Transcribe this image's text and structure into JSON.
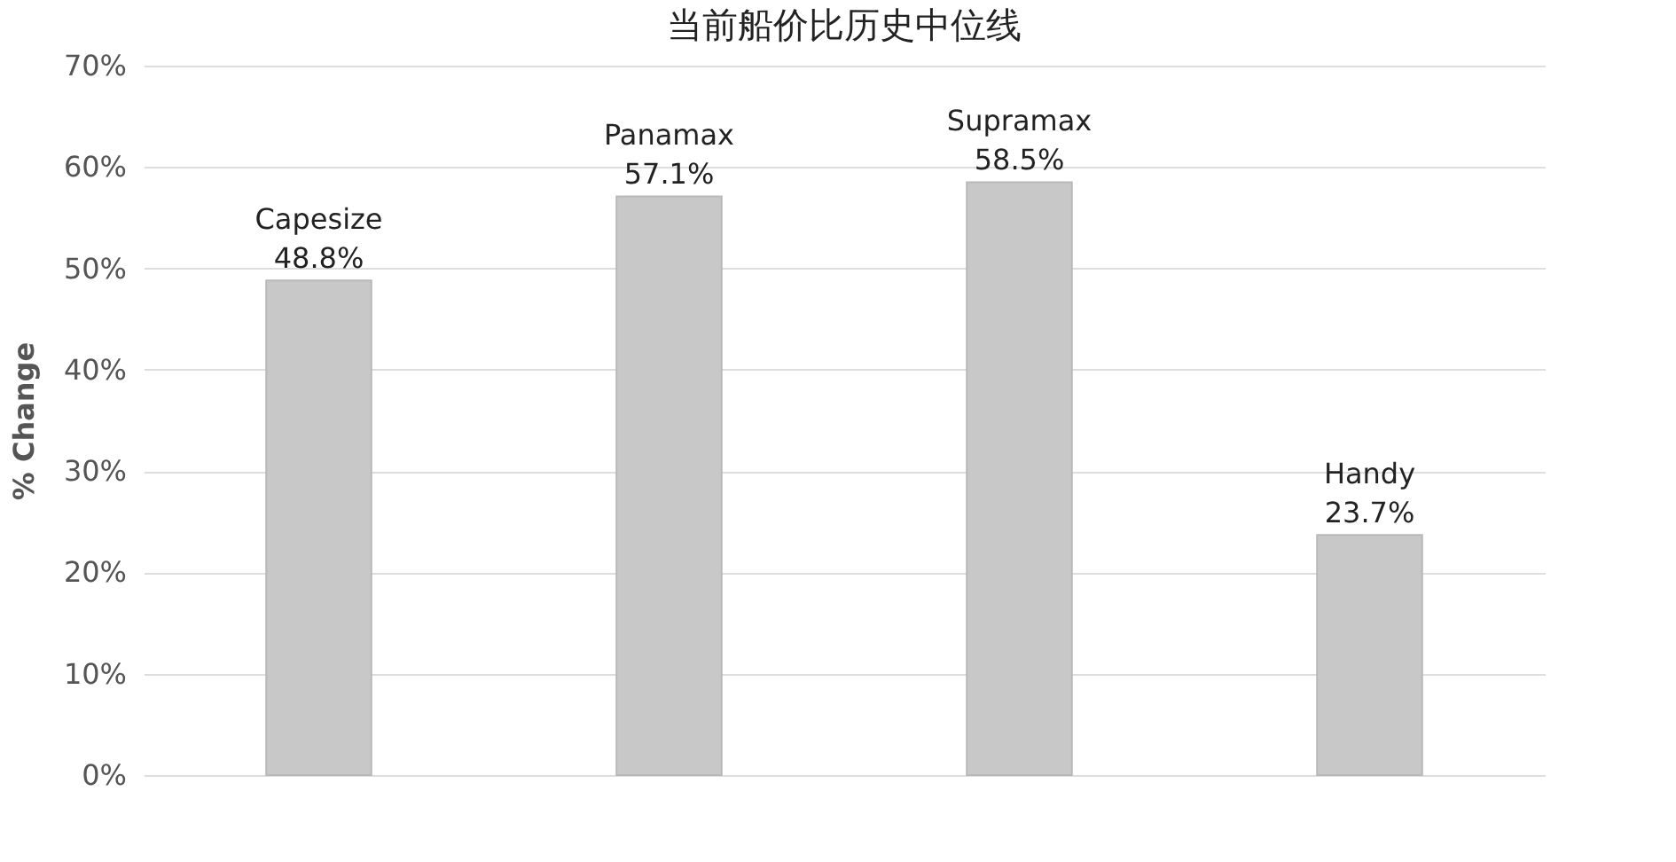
{
  "chart_data": {
    "type": "bar",
    "title": "当前船价比历史中位线",
    "ylabel": "% Change",
    "categories": [
      "Capesize",
      "Panamax",
      "Supramax",
      "Handy"
    ],
    "values": [
      48.8,
      57.1,
      58.5,
      23.7
    ],
    "value_labels": [
      "48.8%",
      "57.1%",
      "58.5%",
      "23.7%"
    ],
    "color": "#c8c8c8",
    "ylim": [
      0,
      70
    ],
    "yticks": [
      {
        "value": 0,
        "label": "0%"
      },
      {
        "value": 10,
        "label": "10%"
      },
      {
        "value": 20,
        "label": "20%"
      },
      {
        "value": 30,
        "label": "30%"
      },
      {
        "value": 40,
        "label": "40%"
      },
      {
        "value": 50,
        "label": "50%"
      },
      {
        "value": 60,
        "label": "60%"
      },
      {
        "value": 70,
        "label": "70%"
      }
    ],
    "grid": "y",
    "tick_labels": "y"
  }
}
